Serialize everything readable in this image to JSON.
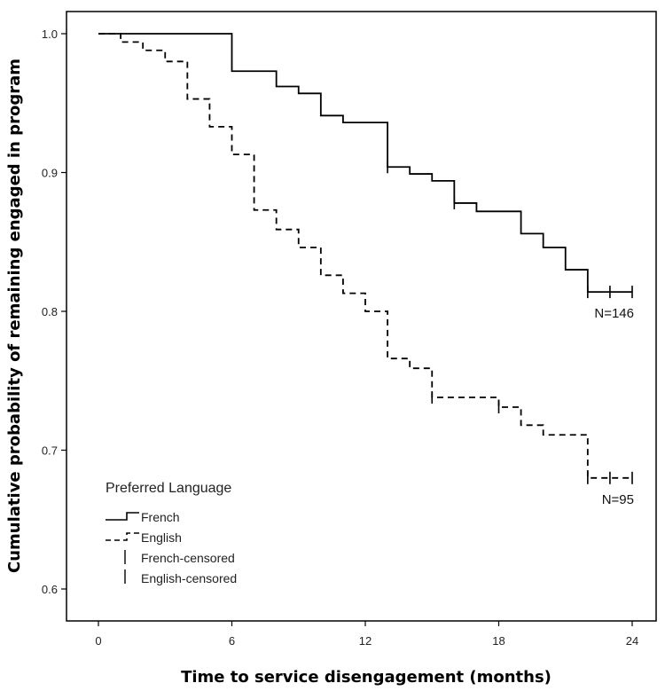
{
  "chart_data": {
    "type": "line",
    "subtype": "kaplan-meier-step",
    "title": "",
    "xlabel": "Time to service disengagement (months)",
    "ylabel": "Cumulative probability of remaining engaged in program",
    "xlim": [
      -1,
      25
    ],
    "ylim": [
      0.58,
      1.02
    ],
    "xticks": [
      "0",
      "6",
      "12",
      "18",
      "24"
    ],
    "xtick_values": [
      0,
      6,
      12,
      18,
      24
    ],
    "yticks": [
      "0.6",
      "0.7",
      "0.8",
      "0.9",
      "1.0"
    ],
    "ytick_values": [
      0.6,
      0.7,
      0.8,
      0.9,
      1.0
    ],
    "grid": false,
    "legend": {
      "title": "Preferred Language",
      "position": "bottom-left",
      "entries": [
        {
          "label": "French",
          "style": "solid"
        },
        {
          "label": "English",
          "style": "dashed"
        },
        {
          "label": "French-censored",
          "style": "tick"
        },
        {
          "label": "English-censored",
          "style": "tick"
        }
      ]
    },
    "series": [
      {
        "name": "French",
        "style": "solid",
        "color": "#000000",
        "end_label": "N=146",
        "x": [
          0,
          6,
          8,
          9,
          10,
          11,
          13,
          14,
          15,
          16,
          17,
          19,
          20,
          21,
          22,
          24
        ],
        "y": [
          1.0,
          0.973,
          0.962,
          0.957,
          0.941,
          0.936,
          0.904,
          0.899,
          0.894,
          0.878,
          0.872,
          0.856,
          0.846,
          0.83,
          0.814,
          0.814
        ],
        "censored": [
          {
            "x": 13,
            "y": 0.904
          },
          {
            "x": 16,
            "y": 0.878
          },
          {
            "x": 22,
            "y": 0.814
          },
          {
            "x": 23,
            "y": 0.814
          },
          {
            "x": 24,
            "y": 0.814
          }
        ]
      },
      {
        "name": "English",
        "style": "dashed",
        "color": "#000000",
        "end_label": "N=95",
        "x": [
          0,
          1,
          2,
          3,
          4,
          5,
          6,
          7,
          8,
          9,
          10,
          11,
          12,
          13,
          14,
          15,
          18,
          19,
          20,
          22,
          24
        ],
        "y": [
          1.0,
          0.994,
          0.988,
          0.98,
          0.953,
          0.933,
          0.913,
          0.873,
          0.859,
          0.846,
          0.826,
          0.813,
          0.8,
          0.766,
          0.759,
          0.738,
          0.731,
          0.718,
          0.711,
          0.68,
          0.68
        ],
        "censored": [
          {
            "x": 15,
            "y": 0.738
          },
          {
            "x": 18,
            "y": 0.731
          },
          {
            "x": 22,
            "y": 0.68
          },
          {
            "x": 23,
            "y": 0.68
          },
          {
            "x": 24,
            "y": 0.68
          }
        ]
      }
    ]
  }
}
